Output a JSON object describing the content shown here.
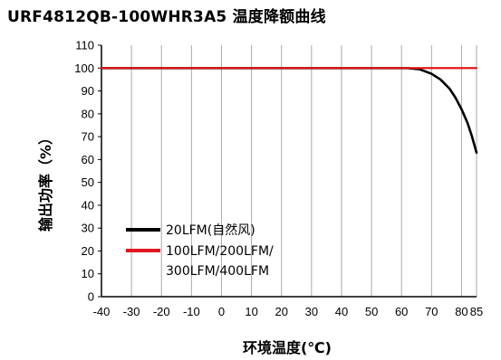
{
  "title": "URF4812QB-100WHR3A5  温度降额曲线",
  "chart_data": {
    "type": "line",
    "xlabel": "环境温度(℃)",
    "ylabel": "输出功率（%）",
    "xlim": [
      -40,
      85
    ],
    "ylim": [
      0,
      110
    ],
    "xticks": [
      -40,
      -30,
      -20,
      -10,
      0,
      10,
      20,
      30,
      40,
      50,
      60,
      70,
      80,
      85
    ],
    "yticks": [
      0,
      10,
      20,
      30,
      40,
      50,
      60,
      70,
      80,
      90,
      100,
      110
    ],
    "grid": {
      "vertical": true,
      "horizontal": false
    },
    "legend_position": "lower-left",
    "series": [
      {
        "name": "20LFM(自然风)",
        "color": "#000000",
        "points": [
          [
            -40,
            100
          ],
          [
            62,
            100
          ],
          [
            66,
            99.5
          ],
          [
            70,
            97.5
          ],
          [
            73,
            95
          ],
          [
            76,
            91
          ],
          [
            78,
            87
          ],
          [
            80,
            82
          ],
          [
            82,
            76
          ],
          [
            83.5,
            70
          ],
          [
            85,
            63
          ]
        ]
      },
      {
        "name": "100LFM/200LFM/\n300LFM/400LFM",
        "name_lines": [
          "100LFM/200LFM/",
          "300LFM/400LFM"
        ],
        "color": "#e0191e",
        "points": [
          [
            -40,
            100
          ],
          [
            85,
            100
          ]
        ]
      }
    ]
  }
}
